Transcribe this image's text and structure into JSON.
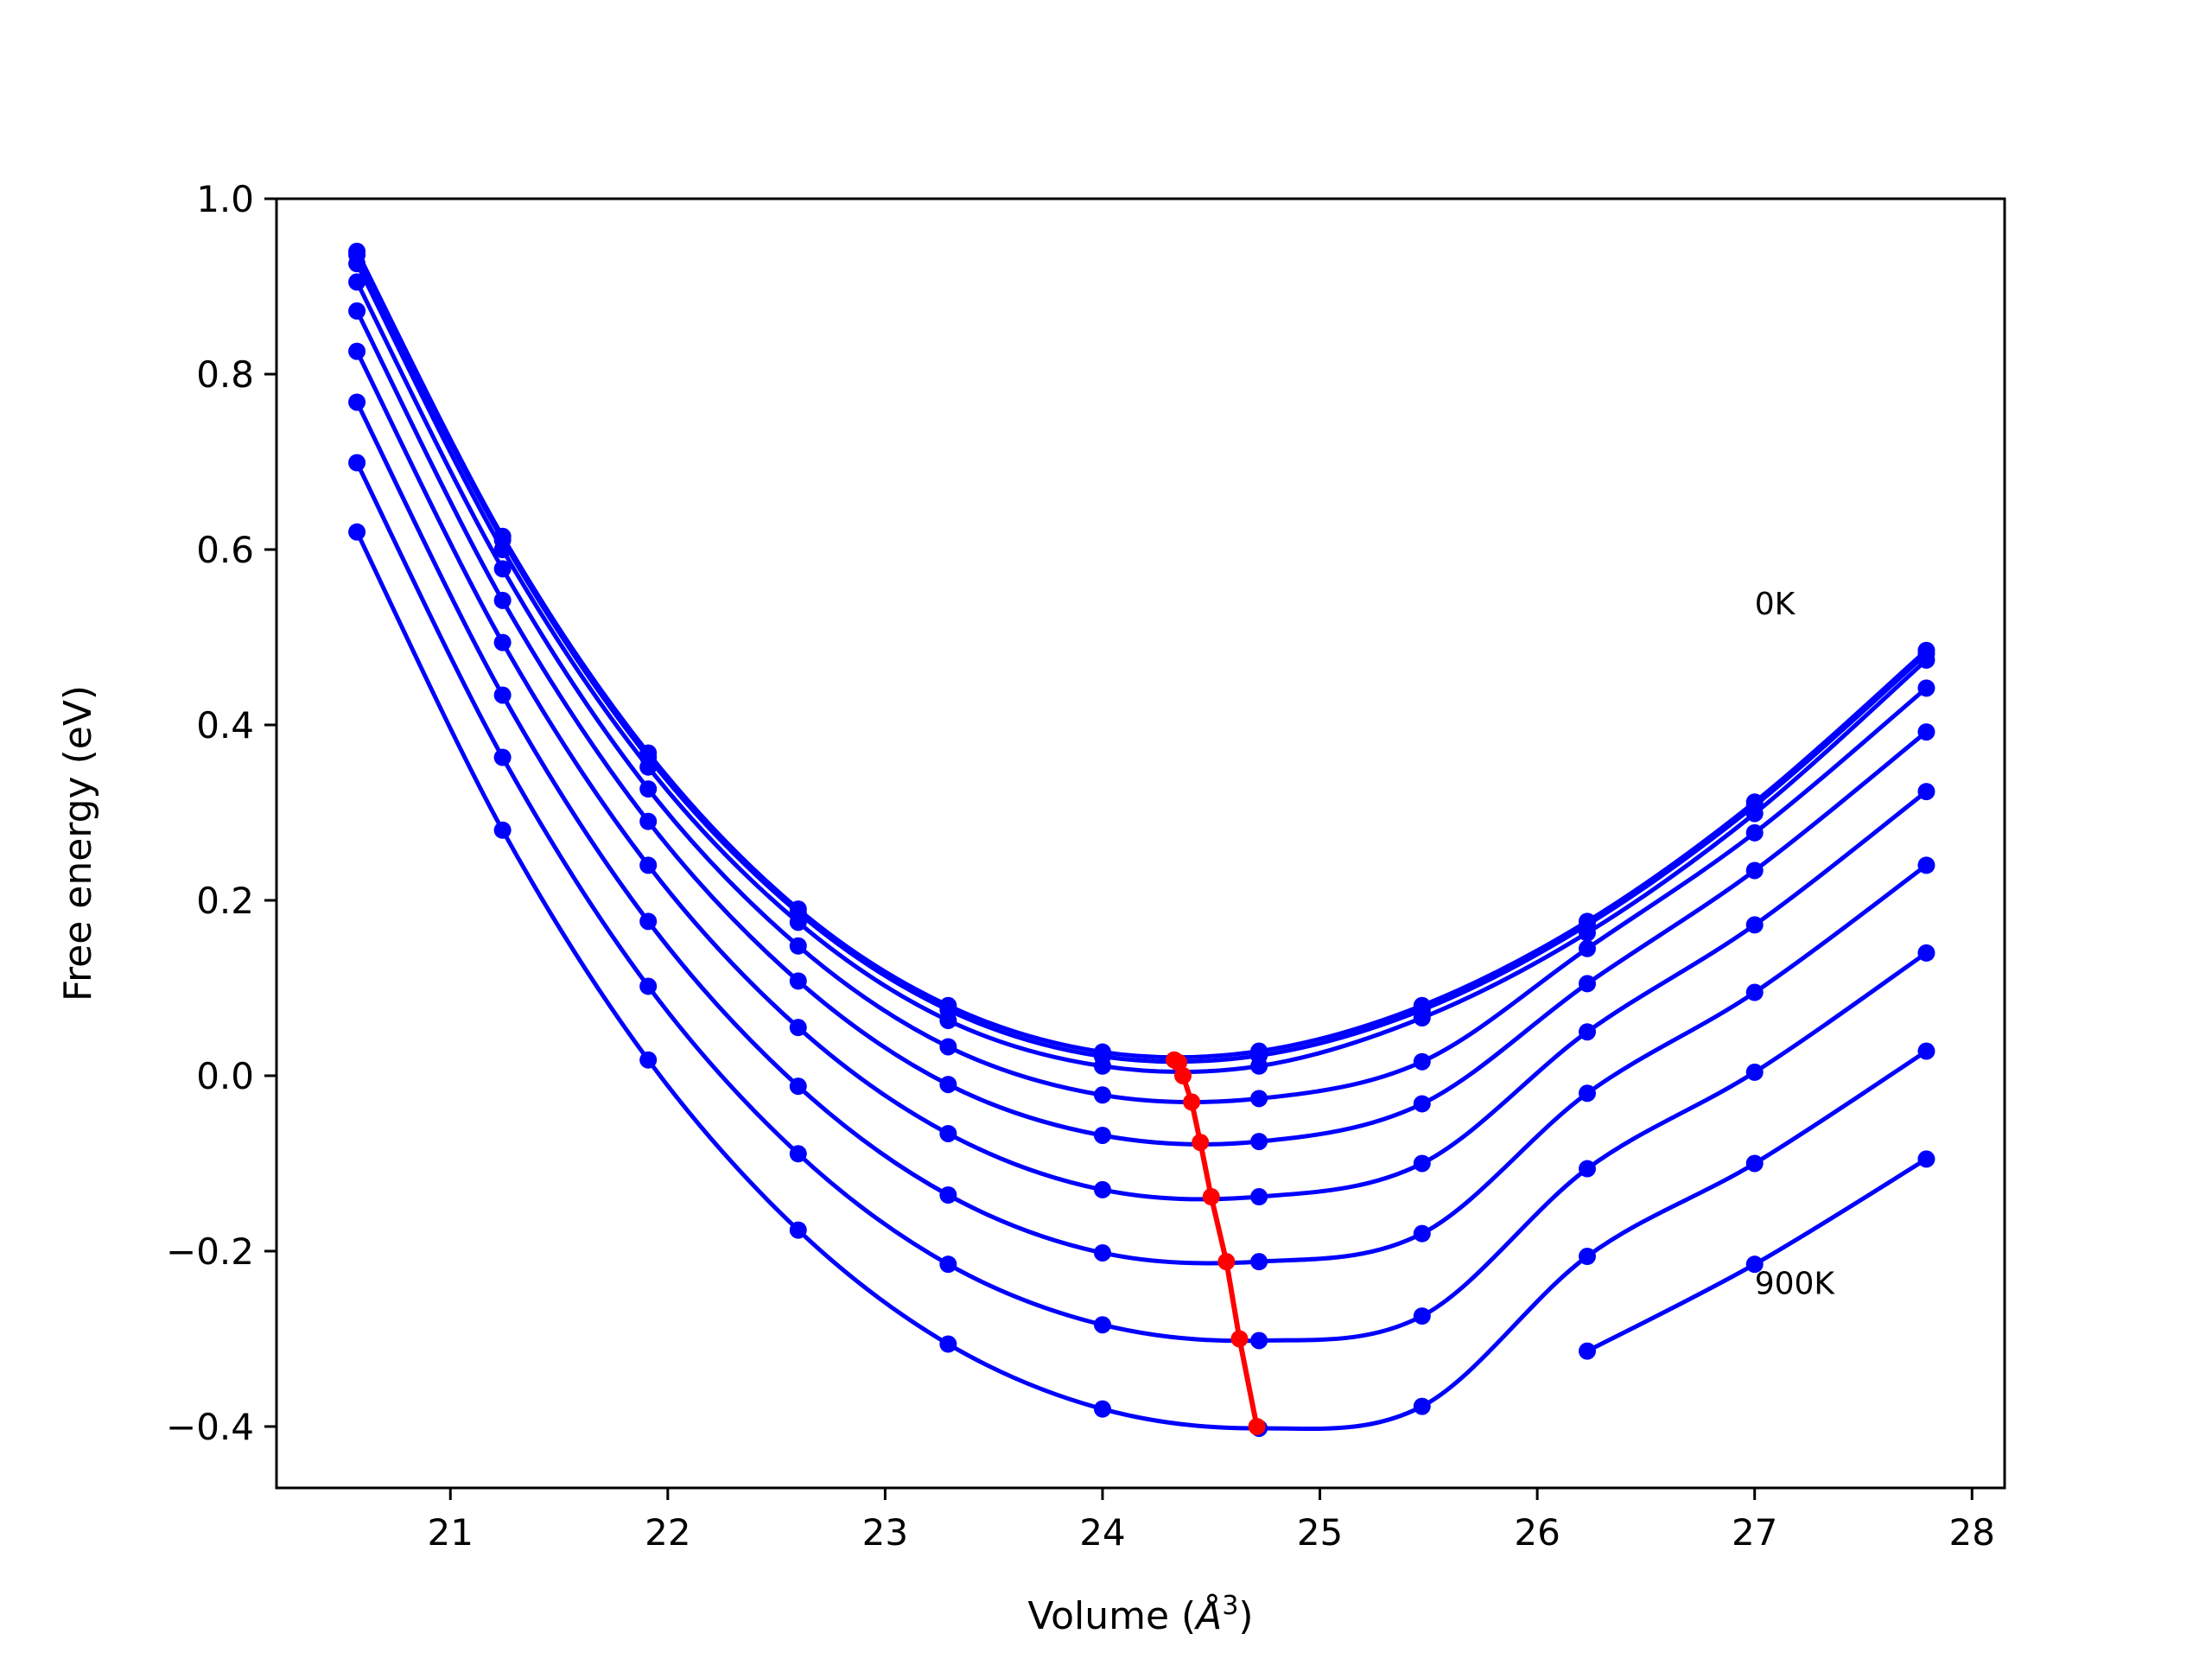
{
  "chart_data": {
    "type": "line",
    "title": "",
    "xlabel_prefix": "Volume (",
    "xlabel_unit": "Å",
    "xlabel_exp": "3",
    "xlabel_suffix": ")",
    "ylabel": "Free energy (eV)",
    "xlim": [
      20.2,
      28.15
    ],
    "ylim": [
      -0.47,
      1.0
    ],
    "x_ticks": [
      21,
      22,
      23,
      24,
      25,
      26,
      27,
      28
    ],
    "x_tick_labels": [
      "21",
      "22",
      "23",
      "24",
      "25",
      "26",
      "27",
      "28"
    ],
    "y_ticks": [
      -0.4,
      -0.2,
      0.0,
      0.2,
      0.4,
      0.6,
      0.8,
      1.0
    ],
    "y_tick_labels": [
      "−0.4",
      "−0.2",
      "0.0",
      "0.2",
      "0.4",
      "0.6",
      "0.8",
      "1.0"
    ],
    "grid": false,
    "legend": "none",
    "colors": {
      "series": "#0000ff",
      "minima": "#ff0000"
    },
    "x": [
      20.57,
      21.24,
      21.91,
      22.6,
      23.29,
      24.0,
      24.72,
      25.47,
      26.23,
      27.0,
      27.79
    ],
    "series": [
      {
        "values": [
          0.94,
          0.615,
          0.368,
          0.19,
          0.08,
          0.027,
          0.028,
          0.08,
          0.176,
          0.312,
          0.485
        ]
      },
      {
        "values": [
          0.936,
          0.611,
          0.363,
          0.186,
          0.075,
          0.022,
          0.023,
          0.075,
          0.172,
          0.308,
          0.481
        ]
      },
      {
        "values": [
          0.926,
          0.6,
          0.352,
          0.175,
          0.063,
          0.011,
          0.011,
          0.066,
          0.163,
          0.299,
          0.474
        ]
      },
      {
        "values": [
          0.905,
          0.578,
          0.327,
          0.148,
          0.033,
          -0.022,
          -0.026,
          0.016,
          0.145,
          0.277,
          0.442
        ]
      },
      {
        "values": [
          0.872,
          0.542,
          0.29,
          0.108,
          -0.01,
          -0.068,
          -0.075,
          -0.032,
          0.105,
          0.234,
          0.392
        ]
      },
      {
        "values": [
          0.826,
          0.494,
          0.24,
          0.055,
          -0.066,
          -0.13,
          -0.138,
          -0.1,
          0.05,
          0.172,
          0.324
        ]
      },
      {
        "values": [
          0.768,
          0.434,
          0.176,
          -0.012,
          -0.136,
          -0.202,
          -0.212,
          -0.18,
          -0.02,
          0.095,
          0.24
        ]
      },
      {
        "values": [
          0.699,
          0.363,
          0.102,
          -0.089,
          -0.215,
          -0.284,
          -0.302,
          -0.274,
          -0.106,
          0.004,
          0.14
        ]
      },
      {
        "values": [
          0.62,
          0.28,
          0.018,
          -0.176,
          -0.306,
          -0.38,
          -0.402,
          -0.377,
          -0.206,
          -0.1,
          0.028
        ]
      },
      {
        "values": [
          null,
          null,
          null,
          null,
          null,
          null,
          null,
          null,
          -0.314,
          -0.215,
          -0.095
        ]
      }
    ],
    "minima": {
      "x": [
        24.33,
        24.35,
        24.37,
        24.41,
        24.45,
        24.5,
        24.57,
        24.63,
        24.71
      ],
      "y": [
        0.018,
        0.015,
        0.0,
        -0.03,
        -0.076,
        -0.138,
        -0.212,
        -0.3,
        -0.4
      ]
    },
    "annotations": [
      {
        "text": "0K",
        "x": 27.0,
        "y": 0.54
      },
      {
        "text": "900K",
        "x": 27.0,
        "y": -0.235
      }
    ]
  }
}
